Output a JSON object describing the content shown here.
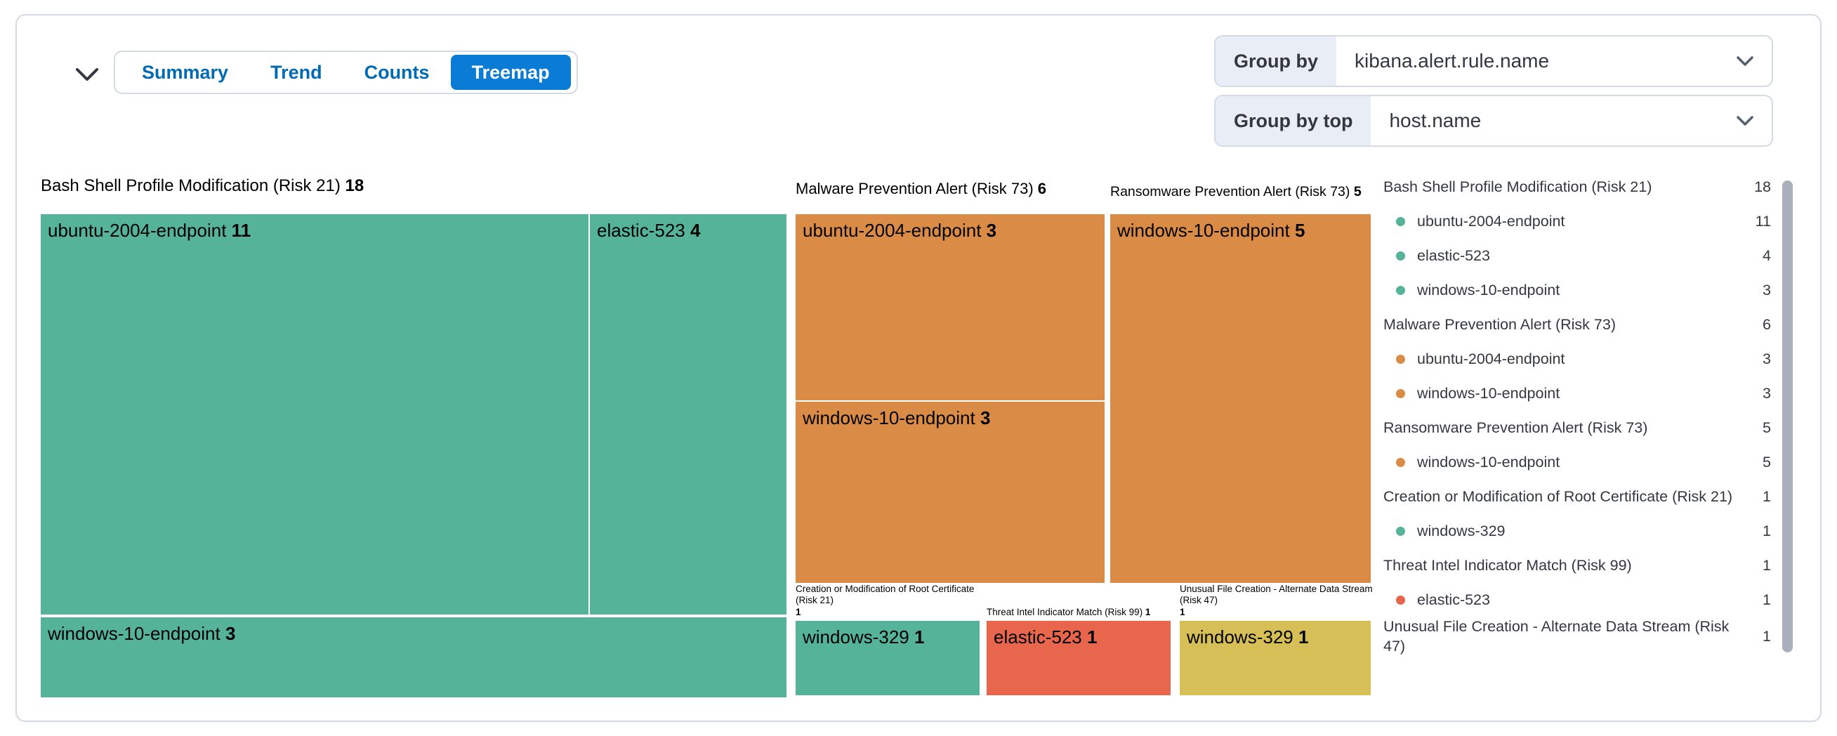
{
  "panel": {
    "tabs": [
      "Summary",
      "Trend",
      "Counts",
      "Treemap"
    ],
    "selected_tab": "Treemap"
  },
  "controls": {
    "group_by": {
      "label": "Group by",
      "value": "kibana.alert.rule.name"
    },
    "group_by_top": {
      "label": "Group by top",
      "value": "host.name"
    }
  },
  "colors": {
    "green": "#54B399",
    "orange": "#DA8B45",
    "red": "#E7664C",
    "yellow": "#D6BF57",
    "accent_blue": "#0A7CD6",
    "link_blue": "#006BB4",
    "border": "#D3DAE6",
    "legend_text": "#343741"
  },
  "chart_data": {
    "type": "treemap",
    "title": "",
    "legend_position": "right",
    "sections": [
      {
        "id": "bash",
        "title": "Bash Shell Profile Modification (Risk 21)",
        "count": "18",
        "color": "#54B399",
        "cells": [
          {
            "label": "ubuntu-2004-endpoint",
            "count": "11"
          },
          {
            "label": "elastic-523",
            "count": "4"
          },
          {
            "label": "windows-10-endpoint",
            "count": "3"
          }
        ]
      },
      {
        "id": "malware",
        "title": "Malware Prevention Alert (Risk 73)",
        "count": "6",
        "color": "#DA8B45",
        "cells": [
          {
            "label": "ubuntu-2004-endpoint",
            "count": "3"
          },
          {
            "label": "windows-10-endpoint",
            "count": "3"
          }
        ]
      },
      {
        "id": "ransomware",
        "title": "Ransomware Prevention Alert (Risk 73)",
        "count": "5",
        "color": "#DA8B45",
        "cells": [
          {
            "label": "windows-10-endpoint",
            "count": "5"
          }
        ]
      },
      {
        "id": "creation",
        "title": "Creation or Modification of Root Certificate (Risk 21)",
        "count": "1",
        "color": "#54B399",
        "cells": [
          {
            "label": "windows-329",
            "count": "1"
          }
        ]
      },
      {
        "id": "threat",
        "title": "Threat Intel Indicator Match (Risk 99)",
        "count": "1",
        "color": "#E7664C",
        "cells": [
          {
            "label": "elastic-523",
            "count": "1"
          }
        ]
      },
      {
        "id": "unusual",
        "title": "Unusual File Creation - Alternate Data Stream (Risk 47)",
        "count": "1",
        "color": "#D6BF57",
        "cells": [
          {
            "label": "windows-329",
            "count": "1"
          }
        ]
      }
    ],
    "legend_rows": [
      {
        "type": "group",
        "label": "Bash Shell Profile Modification (Risk 21)",
        "value": "18"
      },
      {
        "type": "item",
        "label": "ubuntu-2004-endpoint",
        "value": "11",
        "color": "#54B399"
      },
      {
        "type": "item",
        "label": "elastic-523",
        "value": "4",
        "color": "#54B399"
      },
      {
        "type": "item",
        "label": "windows-10-endpoint",
        "value": "3",
        "color": "#54B399"
      },
      {
        "type": "group",
        "label": "Malware Prevention Alert (Risk 73)",
        "value": "6"
      },
      {
        "type": "item",
        "label": "ubuntu-2004-endpoint",
        "value": "3",
        "color": "#DA8B45"
      },
      {
        "type": "item",
        "label": "windows-10-endpoint",
        "value": "3",
        "color": "#DA8B45"
      },
      {
        "type": "group",
        "label": "Ransomware Prevention Alert (Risk 73)",
        "value": "5"
      },
      {
        "type": "item",
        "label": "windows-10-endpoint",
        "value": "5",
        "color": "#DA8B45"
      },
      {
        "type": "group",
        "label": "Creation or Modification of Root Certificate (Risk 21)",
        "value": "1"
      },
      {
        "type": "item",
        "label": "windows-329",
        "value": "1",
        "color": "#54B399"
      },
      {
        "type": "group",
        "label": "Threat Intel Indicator Match (Risk 99)",
        "value": "1"
      },
      {
        "type": "item",
        "label": "elastic-523",
        "value": "1",
        "color": "#E7664C"
      },
      {
        "type": "group",
        "label": "Unusual File Creation - Alternate Data Stream (Risk 47)",
        "value": "1"
      }
    ]
  }
}
